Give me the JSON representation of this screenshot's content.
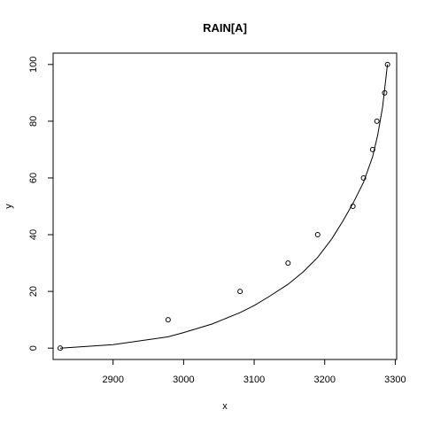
{
  "chart_data": {
    "type": "scatter",
    "title": "RAIN[A]",
    "xlabel": "x",
    "ylabel": "y",
    "xlim": [
      2815,
      3302
    ],
    "ylim": [
      -4,
      104
    ],
    "x_ticks": [
      2900,
      3000,
      3100,
      3200,
      3300
    ],
    "y_ticks": [
      0,
      20,
      40,
      60,
      80,
      100
    ],
    "grid": false,
    "legend": "none",
    "series": [
      {
        "kind": "points",
        "x": [
          2825,
          2978,
          3080,
          3148,
          3190,
          3240,
          3255,
          3268,
          3274,
          3285,
          3289
        ],
        "y": [
          0,
          10,
          20,
          30,
          40,
          50,
          60,
          70,
          80,
          90,
          100
        ]
      },
      {
        "kind": "fitted-curve",
        "x": [
          2825,
          2900,
          2978,
          3000,
          3040,
          3080,
          3100,
          3120,
          3148,
          3170,
          3190,
          3210,
          3225,
          3240,
          3255,
          3268,
          3275,
          3282,
          3289
        ],
        "y": [
          0,
          1.2,
          4,
          5.5,
          8.5,
          12.5,
          15,
          18,
          22.5,
          27,
          32,
          38.5,
          44.5,
          51,
          58.5,
          67.5,
          75,
          85,
          100
        ]
      }
    ]
  }
}
